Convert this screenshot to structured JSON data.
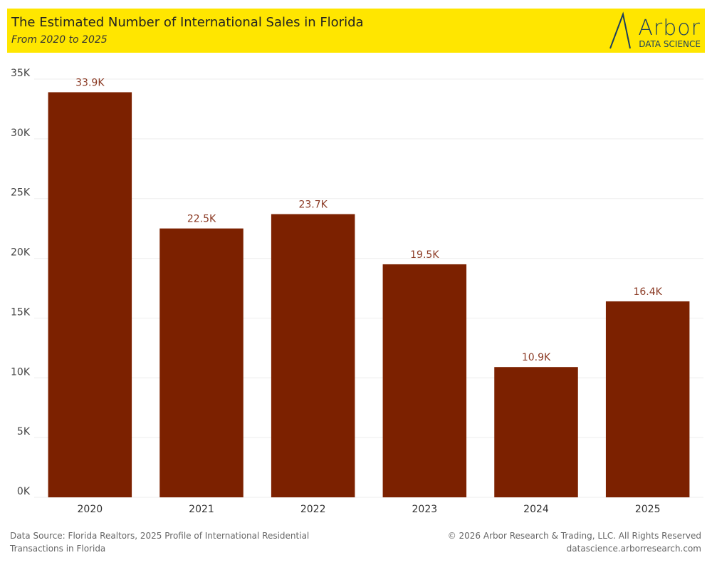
{
  "chart_data": {
    "type": "bar",
    "title": "The Estimated Number of International Sales in Florida",
    "subtitle": "From 2020 to 2025",
    "logo": {
      "name": "Arbor",
      "tagline": "DATA SCIENCE"
    },
    "categories": [
      "2020",
      "2021",
      "2022",
      "2023",
      "2024",
      "2025"
    ],
    "values": [
      33900,
      22500,
      23700,
      19500,
      10900,
      16400
    ],
    "value_labels": [
      "33.9K",
      "22.5K",
      "23.7K",
      "19.5K",
      "10.9K",
      "16.4K"
    ],
    "color": "#7c2100",
    "ylim": [
      0,
      35000
    ],
    "yticks": [
      {
        "value": 0,
        "label": "0K"
      },
      {
        "value": 5000,
        "label": "5K"
      },
      {
        "value": 10000,
        "label": "10K"
      },
      {
        "value": 15000,
        "label": "15K"
      },
      {
        "value": 20000,
        "label": "20K"
      },
      {
        "value": 25000,
        "label": "25K"
      },
      {
        "value": 30000,
        "label": "30K"
      },
      {
        "value": 35000,
        "label": "35K"
      }
    ],
    "grid": true,
    "source": "Data Source: Florida Realtors, 2025 Profile of International Residential Transactions in Florida",
    "copyright": "© 2026 Arbor Research & Trading, LLC. All Rights Reserved",
    "website": "datascience.arborresearch.com"
  }
}
